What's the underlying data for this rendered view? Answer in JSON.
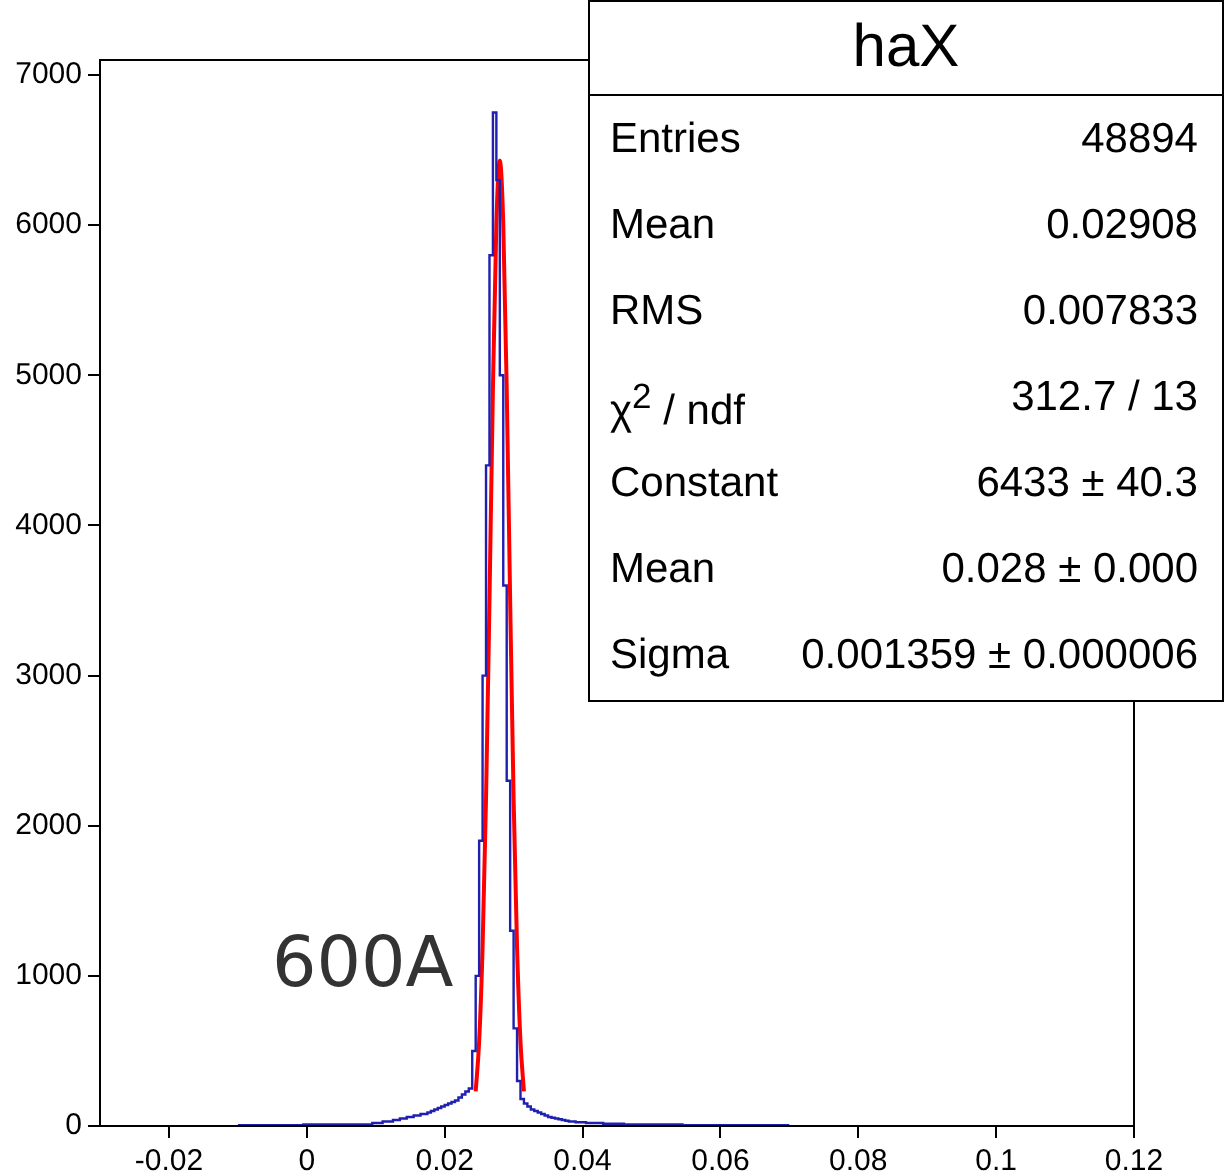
{
  "chart_data": {
    "type": "histogram",
    "xlim": [
      -0.03,
      0.12
    ],
    "ylim": [
      0,
      7100
    ],
    "xticks": [
      -0.02,
      0,
      0.02,
      0.04,
      0.06,
      0.08,
      0.1,
      0.12
    ],
    "yticks": [
      0,
      1000,
      2000,
      3000,
      4000,
      5000,
      6000,
      7000
    ],
    "grid": false,
    "legend": false,
    "series": [
      {
        "type": "histogram",
        "color": "#2020b0",
        "bins": [
          -0.01,
          -0.0095,
          -0.009,
          -0.0085,
          -0.008,
          -0.0075,
          -0.007,
          -0.0065,
          -0.006,
          -0.0055,
          -0.005,
          -0.0045,
          -0.004,
          -0.0035,
          -0.003,
          -0.0025,
          -0.002,
          -0.0015,
          -0.001,
          -0.0005,
          0,
          0.0005,
          0.001,
          0.0015,
          0.002,
          0.0025,
          0.003,
          0.0035,
          0.004,
          0.0045,
          0.005,
          0.0055,
          0.006,
          0.0065,
          0.007,
          0.0075,
          0.008,
          0.0085,
          0.009,
          0.0095,
          0.01,
          0.0105,
          0.011,
          0.0115,
          0.012,
          0.0125,
          0.013,
          0.0135,
          0.014,
          0.0145,
          0.015,
          0.0155,
          0.016,
          0.0165,
          0.017,
          0.0175,
          0.018,
          0.0185,
          0.019,
          0.0195,
          0.02,
          0.0205,
          0.021,
          0.0215,
          0.022,
          0.0225,
          0.023,
          0.0235,
          0.024,
          0.0245,
          0.025,
          0.0255,
          0.026,
          0.0265,
          0.027,
          0.0275,
          0.028,
          0.0285,
          0.029,
          0.0295,
          0.03,
          0.0305,
          0.031,
          0.0315,
          0.032,
          0.0325,
          0.033,
          0.0335,
          0.034,
          0.0345,
          0.035,
          0.0355,
          0.036,
          0.0365,
          0.037,
          0.0375,
          0.038,
          0.0385,
          0.039,
          0.0395,
          0.04,
          0.0405,
          0.041,
          0.0415,
          0.042,
          0.0425,
          0.043,
          0.0435,
          0.044,
          0.0445,
          0.045,
          0.0455,
          0.046,
          0.0465,
          0.047,
          0.0475,
          0.048,
          0.0485,
          0.049,
          0.0495,
          0.05,
          0.0505,
          0.051,
          0.0515,
          0.052,
          0.0525,
          0.053,
          0.0535,
          0.054,
          0.0545,
          0.055,
          0.0555,
          0.056,
          0.0565,
          0.057,
          0.0575,
          0.058,
          0.0585,
          0.059,
          0.0595,
          0.06,
          0.0605,
          0.061,
          0.0615,
          0.062,
          0.0625,
          0.063,
          0.0635,
          0.064,
          0.0645,
          0.065,
          0.0655,
          0.066,
          0.0665,
          0.067,
          0.0675,
          0.068,
          0.0685,
          0.069,
          0.0695,
          0.07
        ],
        "values": [
          5,
          5,
          5,
          5,
          5,
          5,
          5,
          5,
          5,
          5,
          5,
          5,
          5,
          5,
          5,
          5,
          5,
          5,
          5,
          5,
          10,
          10,
          10,
          10,
          10,
          10,
          10,
          10,
          10,
          10,
          10,
          10,
          10,
          10,
          10,
          10,
          10,
          10,
          10,
          10,
          20,
          20,
          20,
          30,
          30,
          30,
          40,
          40,
          50,
          50,
          60,
          60,
          70,
          70,
          80,
          80,
          90,
          100,
          110,
          120,
          130,
          140,
          150,
          160,
          170,
          190,
          210,
          230,
          250,
          500,
          1000,
          1900,
          3000,
          4400,
          5800,
          6750,
          6300,
          5000,
          3600,
          2300,
          1300,
          650,
          300,
          180,
          150,
          130,
          110,
          100,
          90,
          80,
          70,
          60,
          55,
          50,
          45,
          40,
          35,
          30,
          30,
          25,
          25,
          25,
          20,
          20,
          20,
          20,
          20,
          15,
          15,
          15,
          15,
          15,
          15,
          10,
          10,
          10,
          10,
          10,
          10,
          10,
          10,
          10,
          10,
          10,
          10,
          10,
          10,
          10,
          10,
          10,
          5,
          5,
          5,
          5,
          5,
          5,
          5,
          5,
          5,
          5,
          5,
          5,
          5,
          5,
          5,
          5,
          5,
          5,
          5,
          5,
          5,
          5,
          5,
          5,
          5,
          5,
          5,
          5,
          5,
          5
        ]
      },
      {
        "type": "line",
        "color": "#ff0000",
        "x": [
          0.0245,
          0.025,
          0.0255,
          0.026,
          0.0265,
          0.027,
          0.0275,
          0.028,
          0.0285,
          0.029,
          0.0295,
          0.03,
          0.0305,
          0.031,
          0.0315
        ],
        "values": [
          230,
          560,
          1190,
          2180,
          3500,
          4910,
          6010,
          6430,
          6010,
          4910,
          3500,
          2180,
          1190,
          560,
          230
        ]
      }
    ],
    "annotations": [
      "haX",
      "Entries",
      "48894",
      "Mean",
      "0.02908",
      "RMS",
      "0.007833",
      "χ$^{2}$ / ndf",
      "312.7 / 13",
      "Constant",
      "6433 ± 40.3",
      "Mean",
      "0.028 ± 0.000",
      "Sigma",
      "0.001359 ± 0.000006",
      "600A"
    ]
  }
}
